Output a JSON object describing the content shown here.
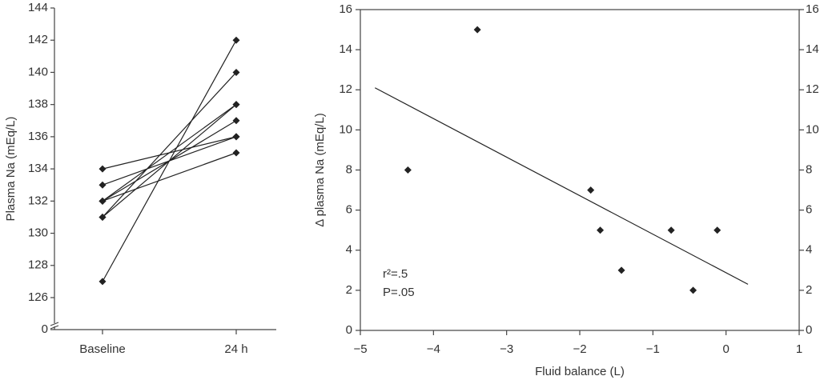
{
  "chart_data": [
    {
      "type": "line",
      "y_label": "Plasma Na (mEq/L)",
      "categories": [
        "Baseline",
        "24 h"
      ],
      "series": [
        {
          "values": [
            127,
            142
          ]
        },
        {
          "values": [
            131,
            140
          ]
        },
        {
          "values": [
            131,
            138
          ]
        },
        {
          "values": [
            132,
            138
          ]
        },
        {
          "values": [
            132,
            137
          ]
        },
        {
          "values": [
            133,
            136
          ]
        },
        {
          "values": [
            134,
            136
          ]
        },
        {
          "values": [
            132,
            135
          ]
        }
      ],
      "color": "#222",
      "ylim": [
        0,
        144
      ],
      "yticks": [
        0,
        126,
        128,
        130,
        132,
        134,
        136,
        138,
        140,
        142,
        144
      ],
      "axis_break": true
    },
    {
      "type": "scatter",
      "x_label": "Fluid balance (L)",
      "y_label": "Δ plasma Na (mEq/L)",
      "x": [
        -4.35,
        -3.4,
        -1.85,
        -1.72,
        -1.43,
        -0.75,
        -0.45,
        -0.12
      ],
      "values": [
        8,
        15,
        7,
        5,
        3,
        5,
        2,
        5
      ],
      "color": "#222",
      "fit_line": {
        "x": [
          -4.8,
          0.3
        ],
        "y": [
          12.1,
          2.3
        ]
      },
      "annotations": [
        "r²=.5",
        "P=.05"
      ],
      "xlim": [
        -5,
        1
      ],
      "xticks": [
        {
          "value": -5,
          "label": "−5"
        },
        {
          "value": -4,
          "label": "−4"
        },
        {
          "value": -3,
          "label": "−3"
        },
        {
          "value": -2,
          "label": "−2"
        },
        {
          "value": -1,
          "label": "−1"
        },
        0,
        1
      ],
      "ylim": [
        0,
        16
      ],
      "yticks": [
        0,
        2,
        4,
        6,
        8,
        10,
        12,
        14,
        16
      ],
      "y2lim": [
        0,
        16
      ],
      "y2ticks": [
        0,
        2,
        4,
        6,
        8,
        10,
        12,
        14,
        16
      ]
    }
  ]
}
